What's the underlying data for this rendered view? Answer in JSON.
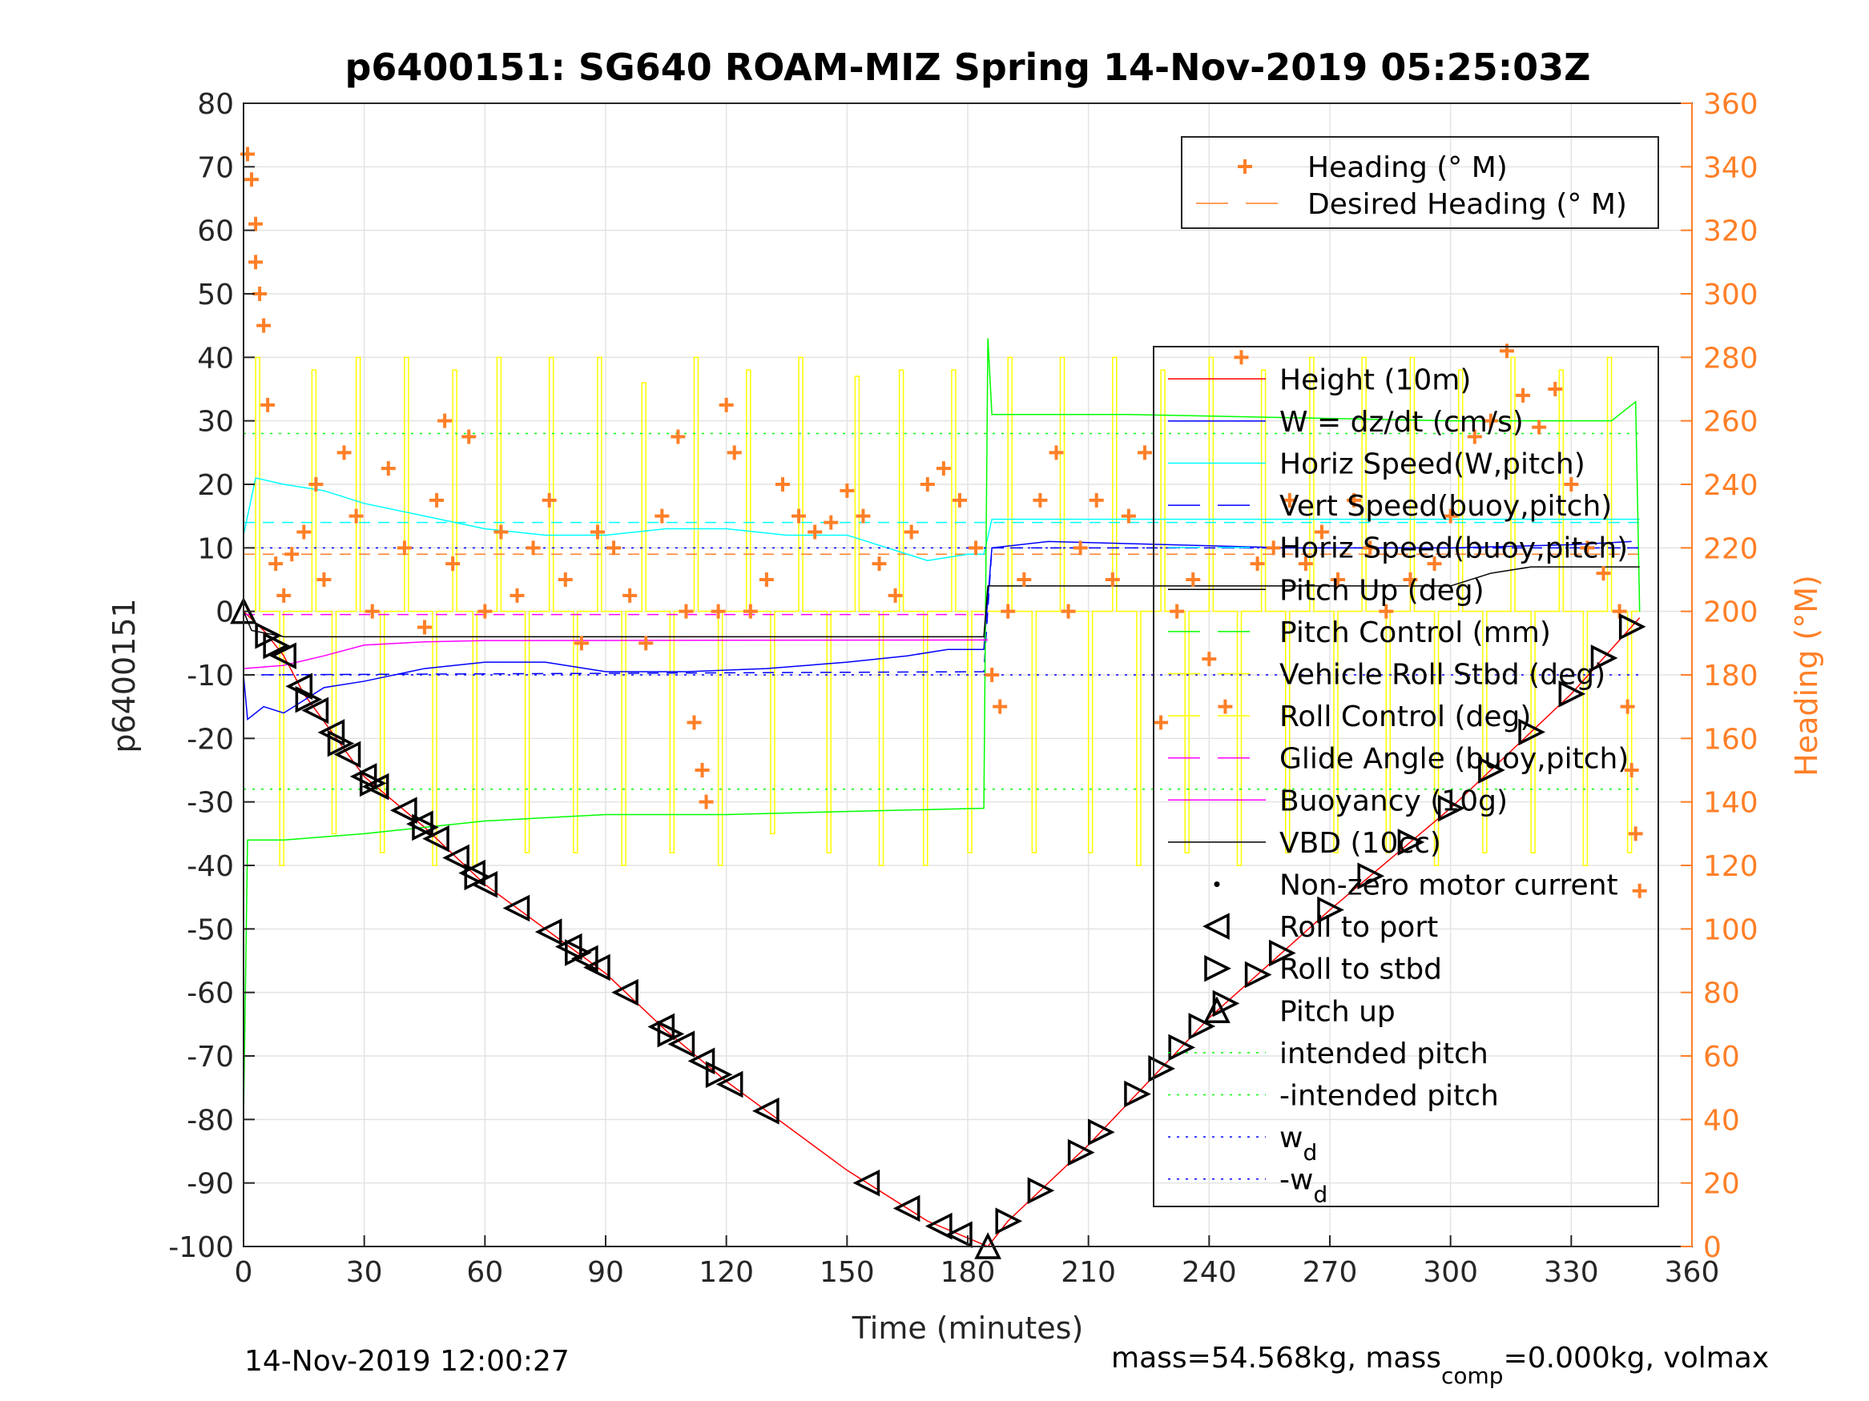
{
  "chart_data": {
    "type": "line",
    "title": "p6400151: SG640 ROAM-MIZ Spring 14-Nov-2019 05:25:03Z",
    "xlabel": "Time (minutes)",
    "ylabel": "p6400151",
    "ylabel_right": "Heading (°M)",
    "xlim": [
      0,
      360
    ],
    "ylim": [
      -100,
      80
    ],
    "ylim_right": [
      0,
      360
    ],
    "xticks": [
      "0",
      "30",
      "60",
      "90",
      "120",
      "150",
      "180",
      "210",
      "240",
      "270",
      "300",
      "330",
      "360"
    ],
    "yticks": [
      "80",
      "70",
      "60",
      "50",
      "40",
      "30",
      "20",
      "10",
      "0",
      "-10",
      "-20",
      "-30",
      "-40",
      "-50",
      "-60",
      "-70",
      "-80",
      "-90",
      "-100"
    ],
    "yticks_right": [
      "360",
      "340",
      "320",
      "300",
      "280",
      "260",
      "240",
      "220",
      "200",
      "180",
      "160",
      "140",
      "120",
      "100",
      "80",
      "60",
      "40",
      "20",
      "0"
    ],
    "grid": true,
    "footer_left": "14-Nov-2019 12:00:27",
    "footer_right": {
      "a": "mass=54.568kg, mass",
      "sub": "comp",
      "b": "=0.000kg, volmax"
    },
    "legend_heading": [
      {
        "label": "Heading (° M)",
        "color": "#ff7f27",
        "style": "plus"
      },
      {
        "label": "Desired Heading (° M)",
        "color": "#ff7f27",
        "style": "dashed"
      }
    ],
    "legend_main": [
      {
        "label": "Height (10m)",
        "color": "#ff0000",
        "style": "solid"
      },
      {
        "label": "W = dz/dt (cm/s)",
        "color": "#0000ff",
        "style": "solid"
      },
      {
        "label": "Horiz Speed(W,pitch)",
        "color": "#00ffff",
        "style": "solid"
      },
      {
        "label": "Vert Speed(buoy,pitch)",
        "color": "#0000ff",
        "style": "dashed"
      },
      {
        "label": "Horiz Speed(buoy,pitch)",
        "color": "#00ffff",
        "style": "dashed"
      },
      {
        "label": "Pitch Up (deg)",
        "color": "#000000",
        "style": "solid"
      },
      {
        "label": "Pitch Control (mm)",
        "color": "#00ff00",
        "style": "dashed"
      },
      {
        "label": "Vehicle Roll Stbd (deg)",
        "color": "#ffff00",
        "style": "dashed"
      },
      {
        "label": "Roll Control (deg)",
        "color": "#ffff00",
        "style": "dashed"
      },
      {
        "label": "Glide Angle (buoy,pitch)",
        "color": "#ff00ff",
        "style": "dashed"
      },
      {
        "label": "Buoyancy (10g)",
        "color": "#ff00ff",
        "style": "solid"
      },
      {
        "label": "VBD (10cc)",
        "color": "#000000",
        "style": "solid"
      },
      {
        "label": "Non-zero motor current",
        "color": "#000000",
        "style": "dot"
      },
      {
        "label": "Roll to port",
        "color": "#000000",
        "style": "tri-left"
      },
      {
        "label": "Roll to stbd",
        "color": "#000000",
        "style": "tri-right"
      },
      {
        "label": "Pitch up",
        "color": "#000000",
        "style": "tri-up"
      },
      {
        "label": "intended pitch",
        "color": "#00ff00",
        "style": "dotted"
      },
      {
        "label": "-intended pitch",
        "color": "#00ff00",
        "style": "dotted"
      },
      {
        "label": "w",
        "sub": "d",
        "color": "#0000ff",
        "style": "dotted"
      },
      {
        "label": "-w",
        "sub": "d",
        "color": "#0000ff",
        "style": "dotted"
      }
    ],
    "series": [
      {
        "name": "Height (10m)",
        "color": "#ff0000",
        "width": 1.5,
        "dash": "",
        "points": [
          [
            0,
            0
          ],
          [
            5,
            -3
          ],
          [
            10,
            -7
          ],
          [
            15,
            -13
          ],
          [
            30,
            -26
          ],
          [
            45,
            -34
          ],
          [
            60,
            -43
          ],
          [
            90,
            -57
          ],
          [
            105,
            -66
          ],
          [
            120,
            -74
          ],
          [
            135,
            -81
          ],
          [
            150,
            -88
          ],
          [
            170,
            -96
          ],
          [
            185,
            -100
          ],
          [
            190,
            -96
          ],
          [
            210,
            -84
          ],
          [
            240,
            -64
          ],
          [
            270,
            -47
          ],
          [
            300,
            -31
          ],
          [
            330,
            -13
          ],
          [
            347,
            -1
          ]
        ]
      },
      {
        "name": "W = dz/dt (cm/s)",
        "color": "#0000ff",
        "width": 1.5,
        "dash": "",
        "points": [
          [
            0,
            -10
          ],
          [
            1,
            -17
          ],
          [
            5,
            -15
          ],
          [
            10,
            -16
          ],
          [
            15,
            -14
          ],
          [
            20,
            -12
          ],
          [
            30,
            -11
          ],
          [
            45,
            -9
          ],
          [
            60,
            -8
          ],
          [
            75,
            -8
          ],
          [
            90,
            -9.5
          ],
          [
            110,
            -9.5
          ],
          [
            130,
            -9
          ],
          [
            150,
            -8
          ],
          [
            165,
            -7
          ],
          [
            175,
            -6
          ],
          [
            184,
            -6
          ],
          [
            186,
            10
          ],
          [
            200,
            11
          ],
          [
            230,
            10.5
          ],
          [
            260,
            10
          ],
          [
            300,
            10
          ],
          [
            330,
            10.5
          ],
          [
            345,
            11
          ]
        ]
      },
      {
        "name": "Horiz Speed(W,pitch)",
        "color": "#00ffff",
        "width": 1.5,
        "dash": "",
        "points": [
          [
            0,
            12
          ],
          [
            3,
            21
          ],
          [
            10,
            20
          ],
          [
            20,
            19
          ],
          [
            30,
            17
          ],
          [
            45,
            15
          ],
          [
            60,
            13
          ],
          [
            75,
            12
          ],
          [
            90,
            12
          ],
          [
            105,
            13
          ],
          [
            120,
            13
          ],
          [
            135,
            12
          ],
          [
            150,
            12
          ],
          [
            160,
            10
          ],
          [
            170,
            8
          ],
          [
            180,
            9
          ],
          [
            184,
            9
          ],
          [
            186,
            14.5
          ],
          [
            347,
            14.5
          ]
        ]
      },
      {
        "name": "Vert Speed(buoy,pitch)",
        "color": "#0000ff",
        "width": 1.5,
        "dash": "14 10",
        "points": [
          [
            0,
            -10
          ],
          [
            184,
            -9.5
          ],
          [
            186,
            10
          ],
          [
            347,
            10
          ]
        ]
      },
      {
        "name": "Horiz Speed(buoy,pitch)",
        "color": "#00ffff",
        "width": 1.5,
        "dash": "14 10",
        "points": [
          [
            0,
            14
          ],
          [
            184,
            14
          ],
          [
            186,
            14
          ],
          [
            347,
            14
          ]
        ]
      },
      {
        "name": "Pitch Control (mm)",
        "color": "#00ff00",
        "width": 1.5,
        "dash": "",
        "points": [
          [
            0,
            -80
          ],
          [
            1,
            -36
          ],
          [
            10,
            -36
          ],
          [
            30,
            -35
          ],
          [
            60,
            -33
          ],
          [
            90,
            -32
          ],
          [
            120,
            -32
          ],
          [
            150,
            -31.5
          ],
          [
            184,
            -31
          ],
          [
            185,
            43
          ],
          [
            186,
            31
          ],
          [
            220,
            31
          ],
          [
            260,
            30.5
          ],
          [
            300,
            30
          ],
          [
            340,
            30
          ],
          [
            346,
            33
          ],
          [
            347,
            0
          ]
        ]
      },
      {
        "name": "Buoyancy (10g)",
        "color": "#ff00ff",
        "width": 1.5,
        "dash": "",
        "points": [
          [
            0,
            -9
          ],
          [
            10,
            -8.5
          ],
          [
            20,
            -7
          ],
          [
            30,
            -5.3
          ],
          [
            45,
            -4.8
          ],
          [
            60,
            -4.6
          ],
          [
            185,
            -4.5
          ]
        ]
      },
      {
        "name": "Glide Angle (buoy,pitch)",
        "color": "#ff00ff",
        "width": 1.5,
        "dash": "14 10",
        "points": [
          [
            0,
            -0.5
          ],
          [
            184,
            -0.5
          ]
        ]
      },
      {
        "name": "VBD (10cc)",
        "color": "#000000",
        "width": 1.5,
        "dash": "",
        "points": [
          [
            0,
            0
          ],
          [
            2,
            -3
          ],
          [
            10,
            -4
          ],
          [
            184,
            -4
          ],
          [
            185,
            4
          ],
          [
            300,
            4
          ],
          [
            310,
            6
          ],
          [
            320,
            7
          ],
          [
            347,
            7
          ]
        ]
      },
      {
        "name": "intended pitch",
        "color": "#00ff00",
        "width": 1.5,
        "dash": "3 8",
        "points": [
          [
            0,
            28
          ],
          [
            347,
            28
          ]
        ]
      },
      {
        "name": "-intended pitch",
        "color": "#00ff00",
        "width": 1.5,
        "dash": "3 8",
        "points": [
          [
            0,
            -28
          ],
          [
            347,
            -28
          ]
        ]
      },
      {
        "name": "wd",
        "color": "#0000ff",
        "width": 1.5,
        "dash": "3 8",
        "points": [
          [
            0,
            10
          ],
          [
            347,
            10
          ]
        ]
      },
      {
        "name": "-wd",
        "color": "#0000ff",
        "width": 1.5,
        "dash": "3 8",
        "points": [
          [
            0,
            -10
          ],
          [
            347,
            -10
          ]
        ]
      }
    ],
    "roll_control_spikes": [
      [
        3,
        40
      ],
      [
        9,
        -40
      ],
      [
        17,
        38
      ],
      [
        22,
        -35
      ],
      [
        28,
        40
      ],
      [
        34,
        -38
      ],
      [
        40,
        40
      ],
      [
        47,
        -40
      ],
      [
        52,
        38
      ],
      [
        57,
        -40
      ],
      [
        63,
        40
      ],
      [
        70,
        -38
      ],
      [
        76,
        40
      ],
      [
        82,
        -38
      ],
      [
        88,
        40
      ],
      [
        94,
        -40
      ],
      [
        99,
        36
      ],
      [
        106,
        -38
      ],
      [
        112,
        40
      ],
      [
        118,
        -40
      ],
      [
        125,
        38
      ],
      [
        131,
        -35
      ],
      [
        138,
        40
      ],
      [
        145,
        -38
      ],
      [
        152,
        37
      ],
      [
        158,
        -40
      ],
      [
        163,
        38
      ],
      [
        169,
        -40
      ],
      [
        176,
        38
      ],
      [
        180,
        -38
      ],
      [
        190,
        40
      ],
      [
        196,
        -38
      ],
      [
        203,
        40
      ],
      [
        210,
        -38
      ],
      [
        216,
        40
      ],
      [
        222,
        -40
      ],
      [
        228,
        38
      ],
      [
        234,
        -38
      ],
      [
        240,
        40
      ],
      [
        247,
        -40
      ],
      [
        253,
        38
      ],
      [
        259,
        -38
      ],
      [
        265,
        40
      ],
      [
        271,
        -38
      ],
      [
        278,
        40
      ],
      [
        284,
        -38
      ],
      [
        290,
        40
      ],
      [
        296,
        -40
      ],
      [
        302,
        38
      ],
      [
        308,
        -38
      ],
      [
        315,
        40
      ],
      [
        320,
        -38
      ],
      [
        327,
        38
      ],
      [
        333,
        -40
      ],
      [
        339,
        40
      ],
      [
        344,
        -38
      ]
    ],
    "heading_points": [
      [
        1,
        344
      ],
      [
        2,
        336
      ],
      [
        3,
        322
      ],
      [
        3,
        310
      ],
      [
        4,
        300
      ],
      [
        5,
        290
      ],
      [
        6,
        265
      ],
      [
        8,
        215
      ],
      [
        10,
        205
      ],
      [
        12,
        218
      ],
      [
        15,
        225
      ],
      [
        18,
        240
      ],
      [
        20,
        210
      ],
      [
        25,
        250
      ],
      [
        28,
        230
      ],
      [
        32,
        200
      ],
      [
        36,
        245
      ],
      [
        40,
        220
      ],
      [
        45,
        195
      ],
      [
        48,
        235
      ],
      [
        50,
        260
      ],
      [
        52,
        215
      ],
      [
        56,
        255
      ],
      [
        60,
        200
      ],
      [
        64,
        225
      ],
      [
        68,
        205
      ],
      [
        72,
        220
      ],
      [
        76,
        235
      ],
      [
        80,
        210
      ],
      [
        84,
        190
      ],
      [
        88,
        225
      ],
      [
        92,
        220
      ],
      [
        96,
        205
      ],
      [
        100,
        190
      ],
      [
        104,
        230
      ],
      [
        108,
        255
      ],
      [
        110,
        200
      ],
      [
        112,
        165
      ],
      [
        114,
        150
      ],
      [
        115,
        140
      ],
      [
        118,
        200
      ],
      [
        120,
        265
      ],
      [
        122,
        250
      ],
      [
        126,
        200
      ],
      [
        130,
        210
      ],
      [
        134,
        240
      ],
      [
        138,
        230
      ],
      [
        142,
        225
      ],
      [
        146,
        228
      ],
      [
        150,
        238
      ],
      [
        154,
        230
      ],
      [
        158,
        215
      ],
      [
        162,
        205
      ],
      [
        166,
        225
      ],
      [
        170,
        240
      ],
      [
        174,
        245
      ],
      [
        178,
        235
      ],
      [
        182,
        220
      ],
      [
        186,
        180
      ],
      [
        188,
        170
      ],
      [
        190,
        200
      ],
      [
        194,
        210
      ],
      [
        198,
        235
      ],
      [
        202,
        250
      ],
      [
        205,
        200
      ],
      [
        208,
        220
      ],
      [
        212,
        235
      ],
      [
        216,
        210
      ],
      [
        220,
        230
      ],
      [
        224,
        250
      ],
      [
        228,
        165
      ],
      [
        232,
        200
      ],
      [
        236,
        210
      ],
      [
        240,
        185
      ],
      [
        244,
        170
      ],
      [
        248,
        280
      ],
      [
        252,
        215
      ],
      [
        256,
        220
      ],
      [
        260,
        235
      ],
      [
        264,
        215
      ],
      [
        268,
        225
      ],
      [
        272,
        210
      ],
      [
        276,
        235
      ],
      [
        280,
        220
      ],
      [
        284,
        200
      ],
      [
        290,
        210
      ],
      [
        296,
        215
      ],
      [
        300,
        230
      ],
      [
        306,
        255
      ],
      [
        310,
        260
      ],
      [
        314,
        282
      ],
      [
        318,
        268
      ],
      [
        322,
        258
      ],
      [
        326,
        270
      ],
      [
        330,
        240
      ],
      [
        334,
        220
      ],
      [
        338,
        212
      ],
      [
        342,
        200
      ],
      [
        344,
        170
      ],
      [
        345,
        150
      ],
      [
        346,
        130
      ],
      [
        347,
        112
      ]
    ],
    "desired_heading": 218,
    "roll_port_times": [
      10,
      14,
      18,
      22,
      26,
      30,
      33,
      40,
      44,
      48,
      53,
      57,
      60,
      68,
      76,
      81,
      85,
      88,
      95,
      104,
      109,
      114,
      121,
      130,
      155,
      165,
      173,
      178
    ],
    "roll_stbd_times": [
      6,
      8,
      16,
      24,
      32,
      45,
      58,
      83,
      106,
      118,
      190,
      198,
      208,
      213,
      222,
      228,
      233,
      238,
      244,
      252,
      258,
      270,
      280,
      290,
      300,
      310,
      320,
      330,
      338,
      345
    ],
    "pitch_up_times": [
      0,
      185
    ]
  }
}
